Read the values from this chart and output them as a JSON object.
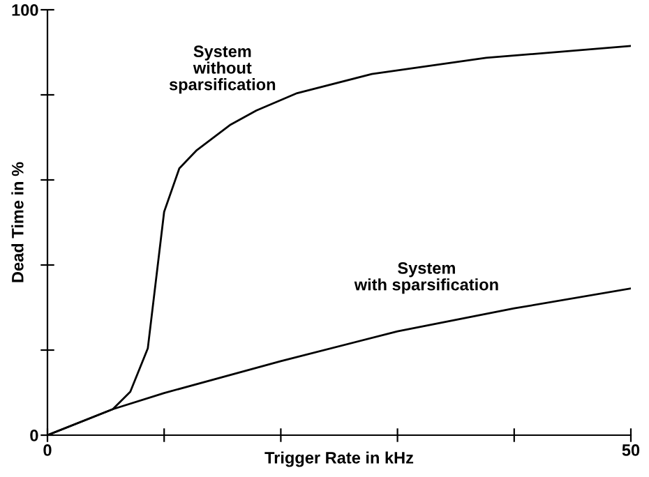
{
  "chart_data": {
    "type": "line",
    "xlabel": "Trigger Rate in kHz",
    "ylabel": "Dead Time in %",
    "xlim": [
      0,
      50
    ],
    "ylim": [
      0,
      100
    ],
    "xticks": [
      0,
      {
        "value": 10,
        "label": null
      },
      {
        "value": 20,
        "label": null
      },
      {
        "value": 30,
        "label": null
      },
      {
        "value": 40,
        "label": null
      },
      50
    ],
    "yticks": [
      0,
      {
        "value": 20,
        "label": null
      },
      {
        "value": 40,
        "label": null
      },
      {
        "value": 60,
        "label": null
      },
      {
        "value": 80,
        "label": null
      },
      100
    ],
    "grid": false,
    "legend": false,
    "marker": "none",
    "line_style": "solid",
    "series": [
      {
        "name": "System\nwithout\nsparsification",
        "color": "#000000",
        "x": [
          0,
          5.6,
          7.1,
          8.6,
          10,
          11.3,
          12.8,
          15.7,
          17.9,
          21.4,
          27.8,
          37.6,
          50
        ],
        "values": [
          0,
          6.1,
          10.2,
          20.4,
          52.5,
          62.7,
          67,
          73,
          76.3,
          80.4,
          84.9,
          88.7,
          91.5
        ]
      },
      {
        "name": "System\nwith sparsification",
        "color": "#000000",
        "x": [
          0,
          5.6,
          10,
          20,
          30,
          40,
          50
        ],
        "values": [
          0,
          6.1,
          9.9,
          17.4,
          24.4,
          29.8,
          34.5
        ]
      }
    ]
  }
}
